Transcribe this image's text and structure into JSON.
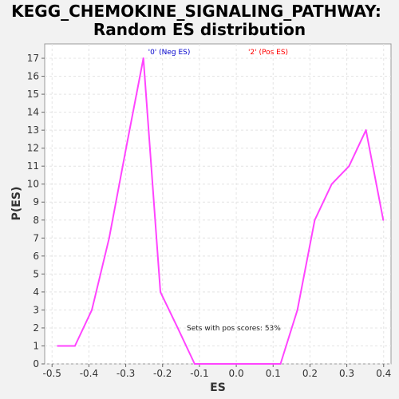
{
  "chart_data": {
    "type": "line",
    "title": "KEGG_CHEMOKINE_SIGNALING_PATHWAY:",
    "subtitle": "Random ES distribution",
    "xlabel": "ES",
    "ylabel": "P(ES)",
    "xlim": [
      -0.52,
      0.42
    ],
    "ylim": [
      0,
      17.8
    ],
    "xticks": [
      -0.5,
      -0.4,
      -0.3,
      -0.2,
      -0.1,
      0.0,
      0.1,
      0.2,
      0.3,
      0.4
    ],
    "xtick_labels": [
      "-0.5",
      "-0.4",
      "-0.3",
      "-0.2",
      "-0.1",
      "0.0",
      "0.1",
      "0.2",
      "0.3",
      "0.4"
    ],
    "yticks": [
      0,
      1,
      2,
      3,
      4,
      5,
      6,
      7,
      8,
      9,
      10,
      11,
      12,
      13,
      14,
      15,
      16,
      17
    ],
    "ytick_labels": [
      "0",
      "1",
      "2",
      "3",
      "4",
      "5",
      "6",
      "7",
      "8",
      "9",
      "10",
      "11",
      "12",
      "13",
      "14",
      "15",
      "16",
      "17"
    ],
    "grid": true,
    "series": [
      {
        "color": "#ff44ff",
        "x": [
          -0.485,
          -0.438,
          -0.392,
          -0.345,
          -0.299,
          -0.252,
          -0.206,
          -0.159,
          -0.113,
          -0.066,
          -0.02,
          0.027,
          0.073,
          0.12,
          0.166,
          0.213,
          0.259,
          0.306,
          0.352,
          0.399
        ],
        "y": [
          1,
          1,
          3,
          7,
          12,
          17,
          4,
          2,
          0,
          0,
          0,
          0,
          0,
          0,
          3,
          8,
          10,
          11,
          13,
          8
        ]
      }
    ],
    "legend": [
      {
        "label": "'0' (Neg ES)",
        "color": "#0000cc"
      },
      {
        "label": "'2' (Pos ES)",
        "color": "#ff0000"
      }
    ],
    "annotation": "Sets with pos scores: 53%"
  }
}
